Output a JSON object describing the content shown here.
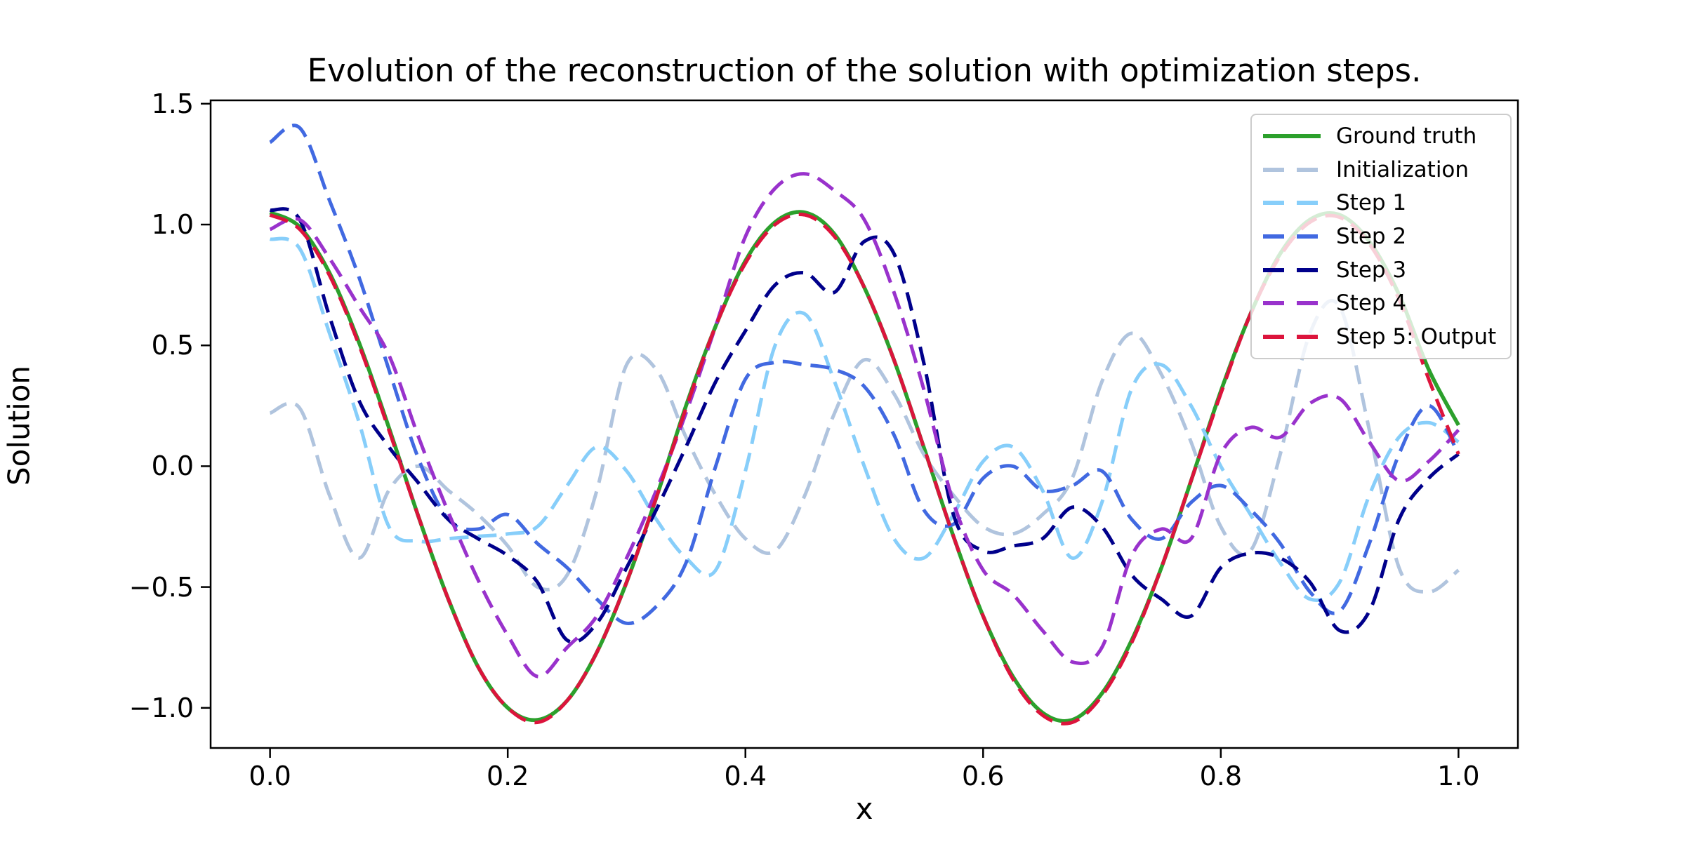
{
  "title": "Evolution of the reconstruction of the solution with optimization steps.",
  "axes": {
    "xlabel": "x",
    "ylabel": "Solution"
  },
  "chart_data": {
    "type": "line",
    "title": "Evolution of the reconstruction of the solution with optimization steps.",
    "xlabel": "x",
    "ylabel": "Solution",
    "xlim": [
      -0.05,
      1.05
    ],
    "ylim": [
      -1.166,
      1.514
    ],
    "grid": false,
    "legend_position": "upper right",
    "x_ticks": [
      0.0,
      0.2,
      0.4,
      0.6,
      0.8,
      1.0
    ],
    "x_tick_labels": [
      "0.0",
      "0.2",
      "0.4",
      "0.6",
      "0.8",
      "1.0"
    ],
    "y_ticks": [
      1.5,
      1.0,
      0.5,
      0.0,
      -0.5,
      -1.0
    ],
    "y_tick_labels": [
      "1.5",
      "1.0",
      "0.5",
      "0.0",
      "−0.5",
      "−1.0"
    ],
    "x": [
      0,
      0.025,
      0.05,
      0.075,
      0.1,
      0.125,
      0.15,
      0.175,
      0.2,
      0.225,
      0.25,
      0.275,
      0.3,
      0.325,
      0.35,
      0.375,
      0.4,
      0.425,
      0.45,
      0.475,
      0.5,
      0.525,
      0.55,
      0.575,
      0.6,
      0.625,
      0.65,
      0.675,
      0.7,
      0.725,
      0.75,
      0.775,
      0.8,
      0.825,
      0.85,
      0.875,
      0.9,
      0.925,
      0.95,
      0.975,
      1.0
    ],
    "series": [
      {
        "name": "Ground truth",
        "color": "#2ca02c",
        "style": "solid",
        "width": 5.5,
        "values": [
          1.05,
          0.99,
          0.8,
          0.51,
          0.16,
          -0.21,
          -0.55,
          -0.83,
          -1.0,
          -1.05,
          -0.97,
          -0.77,
          -0.48,
          -0.13,
          0.25,
          0.58,
          0.85,
          1.01,
          1.05,
          0.96,
          0.74,
          0.44,
          0.08,
          -0.29,
          -0.62,
          -0.87,
          -1.02,
          -1.05,
          -0.94,
          -0.72,
          -0.42,
          -0.06,
          0.31,
          0.63,
          0.88,
          1.02,
          1.04,
          0.93,
          0.71,
          0.4,
          0.17
        ]
      },
      {
        "name": "Initialization",
        "color": "#b0c4de",
        "style": "dashed",
        "width": 5,
        "values": [
          0.22,
          0.24,
          -0.12,
          -0.38,
          -0.1,
          0.0,
          -0.1,
          -0.2,
          -0.33,
          -0.5,
          -0.45,
          -0.1,
          0.42,
          0.4,
          0.12,
          -0.12,
          -0.3,
          -0.35,
          -0.12,
          0.22,
          0.44,
          0.3,
          0.05,
          -0.12,
          -0.25,
          -0.28,
          -0.2,
          -0.05,
          0.35,
          0.55,
          0.38,
          0.1,
          -0.25,
          -0.35,
          0.05,
          0.55,
          0.66,
          0.15,
          -0.42,
          -0.52,
          -0.43
        ]
      },
      {
        "name": "Step 1",
        "color": "#87cefa",
        "style": "dashed",
        "width": 5,
        "values": [
          0.94,
          0.9,
          0.55,
          0.18,
          -0.25,
          -0.31,
          -0.3,
          -0.29,
          -0.28,
          -0.25,
          -0.08,
          0.08,
          -0.02,
          -0.22,
          -0.38,
          -0.43,
          -0.02,
          0.5,
          0.63,
          0.35,
          0.0,
          -0.3,
          -0.38,
          -0.2,
          0.02,
          0.08,
          -0.1,
          -0.38,
          -0.15,
          0.32,
          0.42,
          0.25,
          0.0,
          -0.2,
          -0.4,
          -0.55,
          -0.48,
          -0.12,
          0.12,
          0.18,
          0.1
        ]
      },
      {
        "name": "Step 2",
        "color": "#4169e1",
        "style": "dashed",
        "width": 5,
        "values": [
          1.34,
          1.4,
          1.1,
          0.78,
          0.4,
          0.03,
          -0.22,
          -0.26,
          -0.2,
          -0.32,
          -0.42,
          -0.55,
          -0.65,
          -0.58,
          -0.4,
          0.0,
          0.36,
          0.43,
          0.42,
          0.4,
          0.33,
          0.13,
          -0.18,
          -0.24,
          -0.05,
          0.0,
          -0.1,
          -0.08,
          -0.02,
          -0.22,
          -0.3,
          -0.15,
          -0.08,
          -0.18,
          -0.32,
          -0.52,
          -0.6,
          -0.32,
          0.05,
          0.25,
          0.05
        ]
      },
      {
        "name": "Step 3",
        "color": "#00008b",
        "style": "dashed",
        "width": 5,
        "values": [
          1.06,
          1.02,
          0.62,
          0.27,
          0.08,
          -0.07,
          -0.22,
          -0.3,
          -0.37,
          -0.48,
          -0.72,
          -0.65,
          -0.42,
          -0.18,
          0.08,
          0.35,
          0.56,
          0.75,
          0.8,
          0.72,
          0.93,
          0.88,
          0.43,
          -0.2,
          -0.35,
          -0.33,
          -0.3,
          -0.17,
          -0.25,
          -0.45,
          -0.55,
          -0.62,
          -0.42,
          -0.36,
          -0.38,
          -0.48,
          -0.68,
          -0.6,
          -0.22,
          -0.05,
          0.05
        ]
      },
      {
        "name": "Step 4",
        "color": "#9932cc",
        "style": "dashed",
        "width": 5,
        "values": [
          0.98,
          1.02,
          0.86,
          0.66,
          0.46,
          0.12,
          -0.19,
          -0.47,
          -0.7,
          -0.87,
          -0.75,
          -0.62,
          -0.38,
          -0.1,
          0.22,
          0.58,
          0.95,
          1.15,
          1.21,
          1.14,
          1.02,
          0.72,
          0.32,
          -0.15,
          -0.43,
          -0.53,
          -0.68,
          -0.81,
          -0.75,
          -0.37,
          -0.26,
          -0.3,
          0.05,
          0.16,
          0.12,
          0.26,
          0.28,
          0.1,
          -0.06,
          0.02,
          0.15
        ]
      },
      {
        "name": "Step 5: Output",
        "color": "#dc143c",
        "style": "dashed",
        "width": 5,
        "values": [
          1.04,
          0.98,
          0.79,
          0.5,
          0.15,
          -0.21,
          -0.55,
          -0.83,
          -1.0,
          -1.06,
          -0.97,
          -0.77,
          -0.48,
          -0.13,
          0.24,
          0.58,
          0.84,
          1.0,
          1.04,
          0.95,
          0.74,
          0.44,
          0.08,
          -0.29,
          -0.62,
          -0.88,
          -1.03,
          -1.06,
          -0.95,
          -0.73,
          -0.42,
          -0.06,
          0.3,
          0.63,
          0.87,
          1.01,
          1.03,
          0.92,
          0.69,
          0.36,
          0.05
        ]
      }
    ]
  }
}
